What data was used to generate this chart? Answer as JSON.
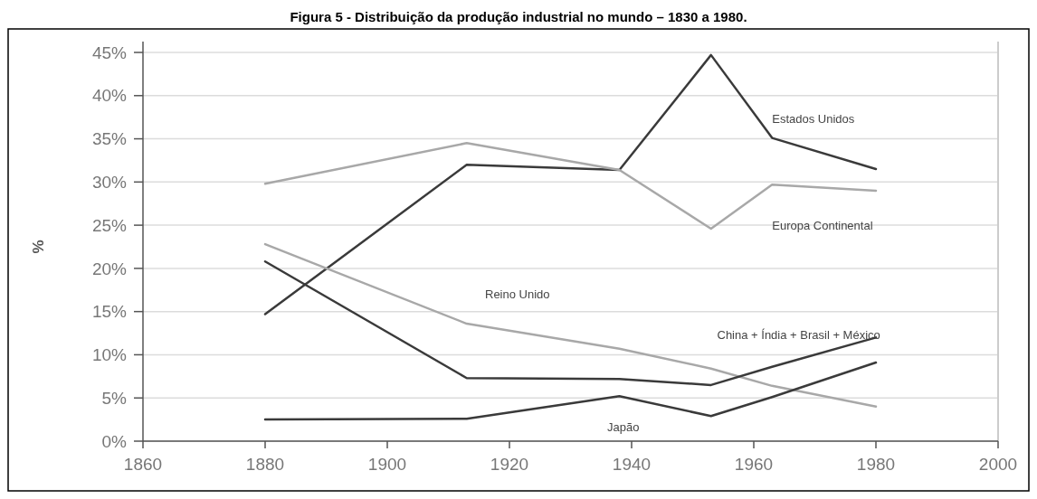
{
  "chart_data": {
    "type": "line",
    "title": "Figura 5 - Distribuição da produção industrial no mundo – 1830 a 1980.",
    "ylabel": "%",
    "x": [
      1880,
      1913,
      1938,
      1953,
      1963,
      1980
    ],
    "series": [
      {
        "name": "Estados Unidos",
        "color": "#3a3a3a",
        "values": [
          14.7,
          32,
          31.4,
          44.7,
          35.1,
          31.5
        ]
      },
      {
        "name": "Europa Continental",
        "color": "#a8a8a8",
        "values": [
          29.8,
          34.5,
          31.4,
          24.6,
          29.7,
          29
        ]
      },
      {
        "name": "Reino Unido",
        "color": "#a8a8a8",
        "values": [
          22.8,
          13.6,
          10.7,
          8.4,
          6.4,
          4
        ]
      },
      {
        "name": "China + Índia + Brasil + México",
        "color": "#3a3a3a",
        "values": [
          20.8,
          7.3,
          7.2,
          6.5,
          8.6,
          12
        ]
      },
      {
        "name": "Japão",
        "color": "#3a3a3a",
        "values": [
          2.5,
          2.6,
          5.2,
          2.9,
          5.1,
          9.1
        ]
      }
    ],
    "xlim": [
      1860,
      2000
    ],
    "xticks": [
      1860,
      1880,
      1900,
      1920,
      1940,
      1960,
      1980,
      2000
    ],
    "ylim": [
      0,
      45
    ],
    "yticks": [
      {
        "value": 0,
        "label": "0%"
      },
      {
        "value": 5,
        "label": "5%"
      },
      {
        "value": 10,
        "label": "10%"
      },
      {
        "value": 15,
        "label": "15%"
      },
      {
        "value": 20,
        "label": "20%"
      },
      {
        "value": 25,
        "label": "25%"
      },
      {
        "value": 30,
        "label": "30%"
      },
      {
        "value": 35,
        "label": "35%"
      },
      {
        "value": 40,
        "label": "40%"
      },
      {
        "value": 45,
        "label": "45%"
      }
    ],
    "grid": "y",
    "marker": "none",
    "line_style": "solid"
  }
}
